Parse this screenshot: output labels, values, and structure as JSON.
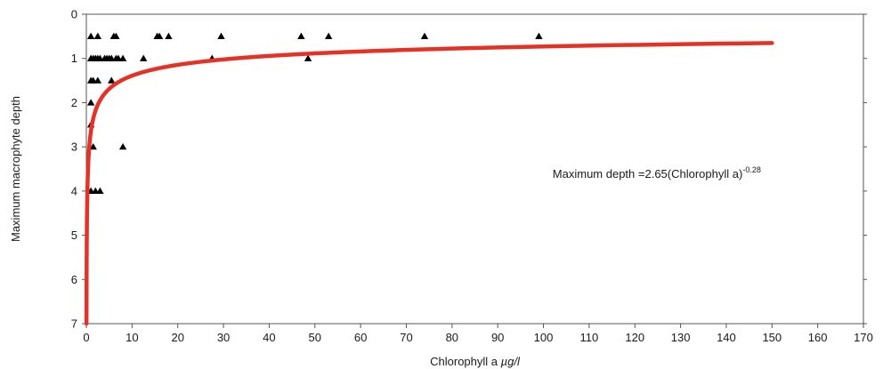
{
  "chart_data": {
    "type": "scatter",
    "xlabel_main": "Chlorophyll a ",
    "xlabel_unit": "µg/l",
    "ylabel": "Maximum macrophyte depth",
    "xlim": [
      0,
      170
    ],
    "ylim": [
      0,
      7
    ],
    "y_inverted": true,
    "x_ticks": [
      0,
      10,
      20,
      30,
      40,
      50,
      60,
      70,
      80,
      90,
      100,
      110,
      120,
      130,
      140,
      150,
      160,
      170
    ],
    "y_ticks": [
      0,
      1,
      2,
      3,
      4,
      5,
      6,
      7
    ],
    "grid": false,
    "marker": "triangle",
    "marker_color": "#000000",
    "fit_color": "#e53226",
    "points": [
      [
        1.0,
        0.5
      ],
      [
        2.5,
        0.5
      ],
      [
        6.0,
        0.5
      ],
      [
        6.5,
        0.5
      ],
      [
        15.5,
        0.5
      ],
      [
        16.0,
        0.5
      ],
      [
        18.0,
        0.5
      ],
      [
        29.5,
        0.5
      ],
      [
        47.0,
        0.5
      ],
      [
        53.0,
        0.5
      ],
      [
        74.0,
        0.5
      ],
      [
        99.0,
        0.5
      ],
      [
        1.0,
        1.0
      ],
      [
        1.5,
        1.0
      ],
      [
        2.0,
        1.0
      ],
      [
        2.5,
        1.0
      ],
      [
        3.0,
        1.0
      ],
      [
        4.0,
        1.0
      ],
      [
        4.5,
        1.0
      ],
      [
        5.0,
        1.0
      ],
      [
        5.5,
        1.0
      ],
      [
        6.5,
        1.0
      ],
      [
        7.0,
        1.0
      ],
      [
        8.0,
        1.0
      ],
      [
        12.5,
        1.0
      ],
      [
        27.5,
        1.0
      ],
      [
        48.5,
        1.0
      ],
      [
        1.0,
        1.5
      ],
      [
        1.5,
        1.5
      ],
      [
        2.5,
        1.5
      ],
      [
        5.5,
        1.5
      ],
      [
        1.0,
        2.0
      ],
      [
        1.0,
        2.5
      ],
      [
        1.5,
        3.0
      ],
      [
        8.0,
        3.0
      ],
      [
        1.0,
        4.0
      ],
      [
        2.0,
        4.0
      ],
      [
        3.0,
        4.0
      ]
    ],
    "fit": {
      "coefficient": 2.65,
      "exponent": -0.28,
      "x_range": [
        0.0087,
        150
      ]
    },
    "annotation": {
      "text": "Maximum depth =2.65(Chlorophyll a)",
      "superscript": "-0.28",
      "x": 102,
      "y": 3.7
    }
  }
}
